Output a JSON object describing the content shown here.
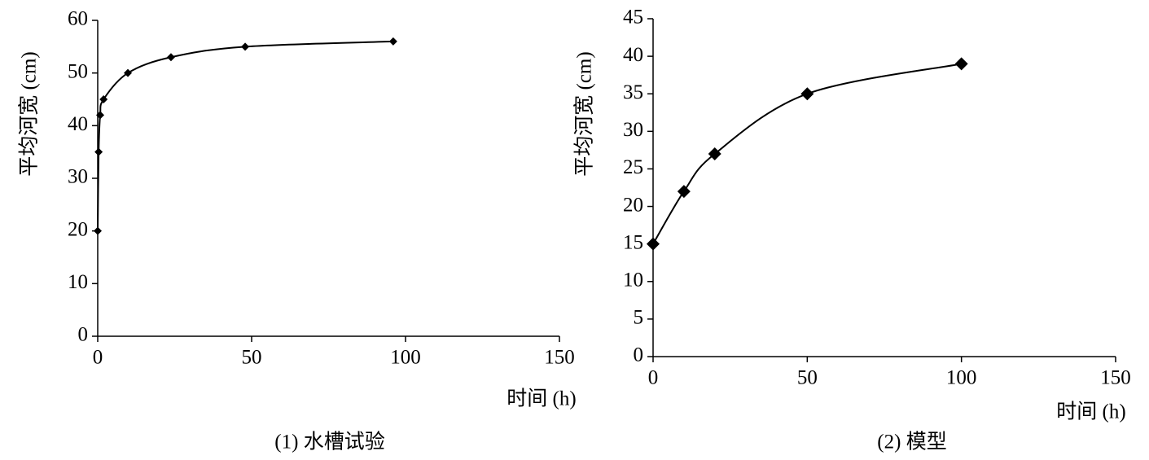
{
  "chart_data": [
    {
      "type": "line",
      "caption": "(1) 水槽试验",
      "xlabel": "时间 (h)",
      "ylabel": "平均河宽 (cm)",
      "x": [
        0,
        0.3,
        0.8,
        1.9,
        9.8,
        23.8,
        47.9,
        96
      ],
      "series": [
        {
          "color": "#000000",
          "values": [
            20,
            35,
            42,
            45,
            50,
            53,
            55,
            56
          ]
        }
      ],
      "xlim": [
        0,
        150
      ],
      "xticks": [
        0,
        50,
        100,
        150
      ],
      "ylim": [
        0,
        60
      ],
      "yticks": [
        0,
        10,
        20,
        30,
        40,
        50,
        60
      ]
    },
    {
      "type": "line",
      "caption": "(2) 模型",
      "xlabel": "时间 (h)",
      "ylabel": "平均河宽 (cm)",
      "x": [
        0,
        10,
        20,
        50,
        100
      ],
      "series": [
        {
          "color": "#000000",
          "values": [
            15,
            22,
            27,
            35,
            39
          ]
        }
      ],
      "xlim": [
        0,
        150
      ],
      "xticks": [
        0,
        50,
        100,
        150
      ],
      "ylim": [
        0,
        45
      ],
      "yticks": [
        0,
        5,
        10,
        15,
        20,
        25,
        30,
        35,
        40,
        45
      ]
    }
  ]
}
